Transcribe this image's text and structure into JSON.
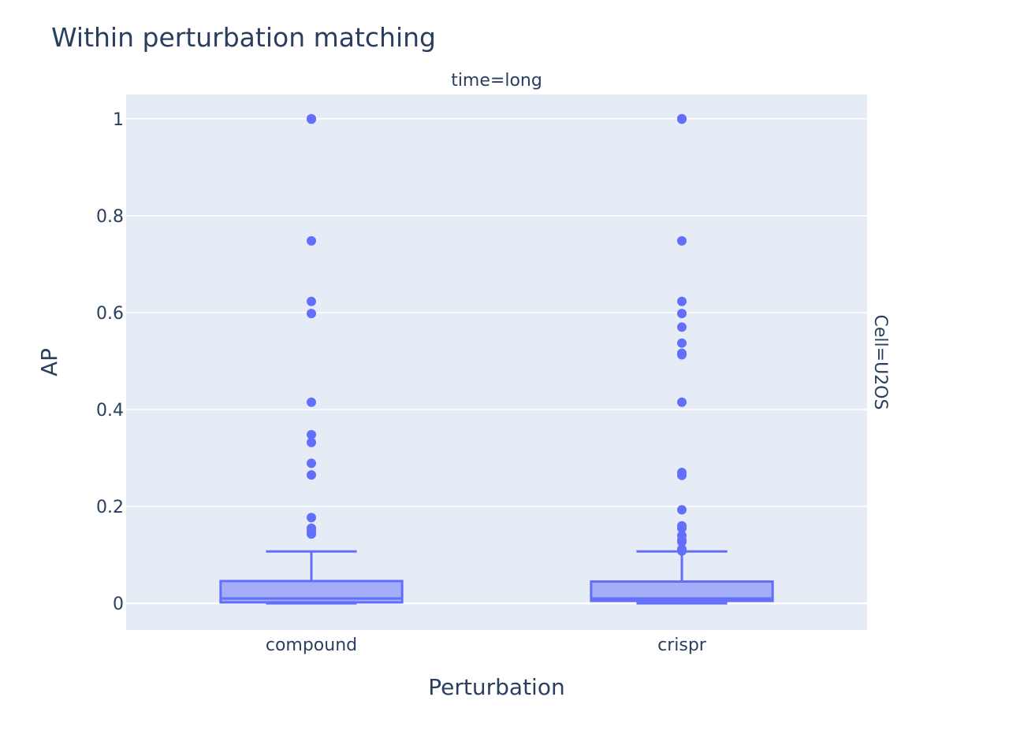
{
  "chart_data": {
    "type": "box",
    "title": "Within perturbation matching",
    "facet_col_label": "time=long",
    "facet_row_label": "Cell=U2OS",
    "xlabel": "Perturbation",
    "ylabel": "AP",
    "categories": [
      "compound",
      "crispr"
    ],
    "yticks": [
      0,
      0.2,
      0.4,
      0.6,
      0.8,
      1
    ],
    "ytick_labels": [
      "0",
      "0.2",
      "0.4",
      "0.6",
      "0.8",
      "1"
    ],
    "ylim": [
      -0.055,
      1.05
    ],
    "grid": true,
    "colors": {
      "box": "#636efa",
      "plot_bg": "#e5ecf6",
      "grid": "#ffffff"
    },
    "series": [
      {
        "category": "compound",
        "min": 0.0,
        "q1": 0.002,
        "median": 0.01,
        "q3": 0.046,
        "upper_fence": 0.107,
        "outliers": [
          1.0,
          0.999,
          0.748,
          0.623,
          0.598,
          0.415,
          0.348,
          0.332,
          0.289,
          0.265,
          0.177,
          0.155,
          0.15,
          0.143
        ]
      },
      {
        "category": "crispr",
        "min": 0.0,
        "q1": 0.005,
        "median": 0.01,
        "q3": 0.045,
        "upper_fence": 0.107,
        "outliers": [
          1.0,
          0.999,
          0.748,
          0.623,
          0.598,
          0.57,
          0.537,
          0.516,
          0.513,
          0.415,
          0.27,
          0.264,
          0.193,
          0.16,
          0.155,
          0.14,
          0.13,
          0.127,
          0.112,
          0.108
        ]
      }
    ]
  }
}
